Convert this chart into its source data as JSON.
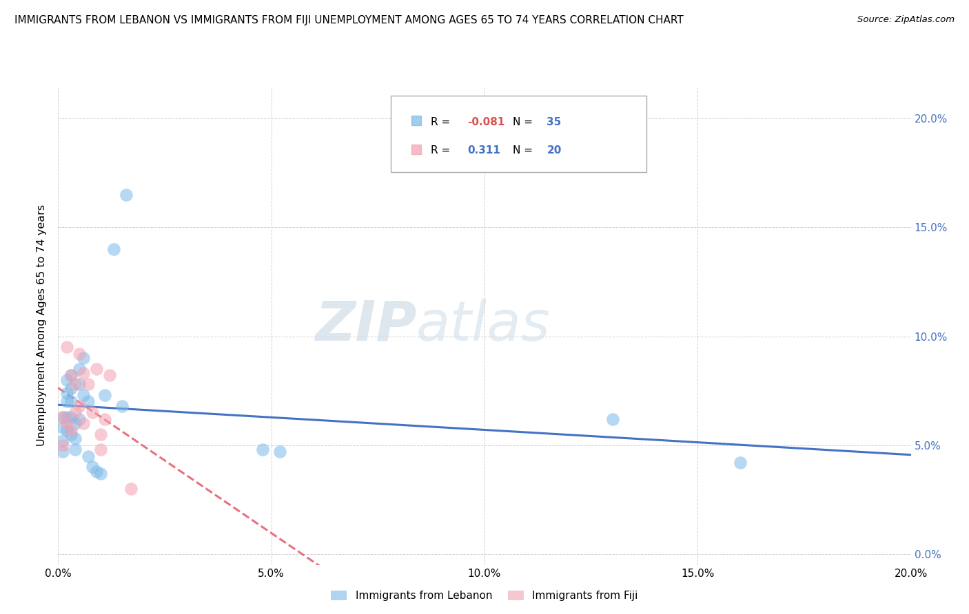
{
  "title": "IMMIGRANTS FROM LEBANON VS IMMIGRANTS FROM FIJI UNEMPLOYMENT AMONG AGES 65 TO 74 YEARS CORRELATION CHART",
  "source": "Source: ZipAtlas.com",
  "ylabel": "Unemployment Among Ages 65 to 74 years",
  "xlim": [
    0.0,
    0.2
  ],
  "ylim": [
    -0.005,
    0.215
  ],
  "r_lebanon": "-0.081",
  "n_lebanon": "35",
  "r_fiji": "0.311",
  "n_fiji": "20",
  "color_lebanon": "#7ab8e8",
  "color_fiji": "#f4a0b0",
  "trendline_lebanon_color": "#4472c4",
  "trendline_fiji_color": "#e87080",
  "watermark_zip": "ZIP",
  "watermark_atlas": "atlas",
  "legend1_label": "Immigrants from Lebanon",
  "legend2_label": "Immigrants from Fiji",
  "lebanon_x": [
    0.001,
    0.001,
    0.001,
    0.001,
    0.002,
    0.002,
    0.002,
    0.002,
    0.002,
    0.003,
    0.003,
    0.003,
    0.003,
    0.003,
    0.004,
    0.004,
    0.004,
    0.005,
    0.005,
    0.005,
    0.006,
    0.006,
    0.007,
    0.007,
    0.008,
    0.009,
    0.01,
    0.011,
    0.013,
    0.015,
    0.016,
    0.048,
    0.052,
    0.13,
    0.16
  ],
  "lebanon_y": [
    0.063,
    0.058,
    0.052,
    0.047,
    0.08,
    0.074,
    0.07,
    0.063,
    0.057,
    0.082,
    0.076,
    0.07,
    0.063,
    0.055,
    0.06,
    0.053,
    0.048,
    0.085,
    0.078,
    0.062,
    0.09,
    0.073,
    0.07,
    0.045,
    0.04,
    0.038,
    0.037,
    0.073,
    0.14,
    0.068,
    0.165,
    0.048,
    0.047,
    0.062,
    0.042
  ],
  "fiji_x": [
    0.001,
    0.001,
    0.002,
    0.002,
    0.003,
    0.003,
    0.004,
    0.004,
    0.005,
    0.005,
    0.006,
    0.006,
    0.007,
    0.008,
    0.009,
    0.01,
    0.01,
    0.011,
    0.012,
    0.017
  ],
  "fiji_y": [
    0.063,
    0.05,
    0.095,
    0.06,
    0.082,
    0.057,
    0.078,
    0.065,
    0.092,
    0.068,
    0.083,
    0.06,
    0.078,
    0.065,
    0.085,
    0.055,
    0.048,
    0.062,
    0.082,
    0.03
  ]
}
